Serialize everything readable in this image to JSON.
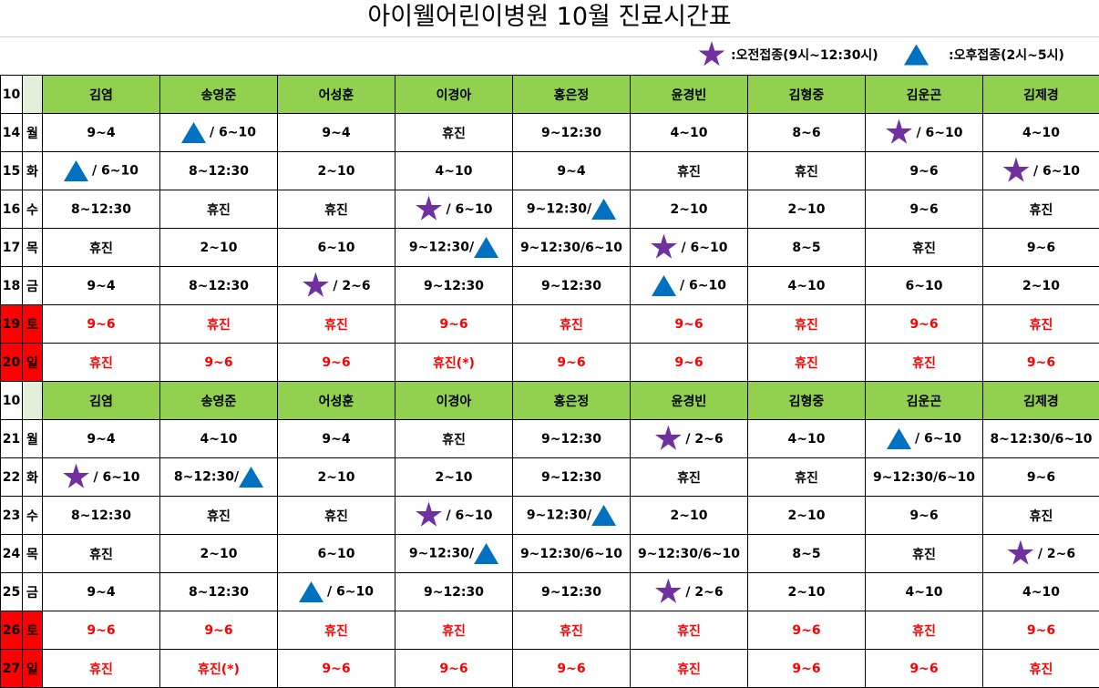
{
  "title": "아이웰어린이병원 10월 진료시간표",
  "legend": {
    "am_label": ":오전접종(9시~12:30시)",
    "pm_label": ":오후접종(2시~5시)",
    "am_icon": "star-icon",
    "pm_icon": "triangle-icon",
    "am_color": "#7030a0",
    "pm_color": "#0070c0"
  },
  "colors": {
    "header_green": "#92d050",
    "weekend_red": "#ff0000"
  },
  "month_label": "10",
  "doctors": [
    "김염",
    "송영준",
    "어성훈",
    "이경아",
    "홍은정",
    "윤경빈",
    "김형중",
    "김운곤",
    "김제경"
  ],
  "weeks": [
    {
      "rows": [
        {
          "date": "14",
          "day": "월",
          "weekend": false,
          "cells": [
            {
              "text": "9~4"
            },
            {
              "icon": "tri",
              "text": "/ 6~10"
            },
            {
              "text": "9~4"
            },
            {
              "text": "휴진"
            },
            {
              "text": "9~12:30"
            },
            {
              "text": "4~10"
            },
            {
              "text": "8~6"
            },
            {
              "icon": "star",
              "text": "/ 6~10"
            },
            {
              "text": "4~10"
            }
          ]
        },
        {
          "date": "15",
          "day": "화",
          "weekend": false,
          "cells": [
            {
              "icon": "tri",
              "text": "/ 6~10"
            },
            {
              "text": "8~12:30"
            },
            {
              "text": "2~10"
            },
            {
              "text": "4~10"
            },
            {
              "text": "9~4"
            },
            {
              "text": "휴진"
            },
            {
              "text": "휴진"
            },
            {
              "text": "9~6"
            },
            {
              "icon": "star",
              "text": "/ 6~10"
            }
          ]
        },
        {
          "date": "16",
          "day": "수",
          "weekend": false,
          "cells": [
            {
              "text": "8~12:30"
            },
            {
              "text": "휴진"
            },
            {
              "text": "휴진"
            },
            {
              "icon": "star",
              "text": "/ 6~10"
            },
            {
              "text": "9~12:30/",
              "icon_after": "tri"
            },
            {
              "text": "2~10"
            },
            {
              "text": "2~10"
            },
            {
              "text": "9~6"
            },
            {
              "text": "휴진"
            }
          ]
        },
        {
          "date": "17",
          "day": "목",
          "weekend": false,
          "cells": [
            {
              "text": "휴진"
            },
            {
              "text": "2~10"
            },
            {
              "text": "6~10"
            },
            {
              "text": "9~12:30/",
              "icon_after": "tri"
            },
            {
              "text": "9~12:30/6~10"
            },
            {
              "icon": "star",
              "text": "/ 6~10"
            },
            {
              "text": "8~5"
            },
            {
              "text": "휴진"
            },
            {
              "text": "9~6"
            }
          ]
        },
        {
          "date": "18",
          "day": "금",
          "weekend": false,
          "cells": [
            {
              "text": "9~4"
            },
            {
              "text": "8~12:30"
            },
            {
              "icon": "star",
              "text": "/ 2~6"
            },
            {
              "text": "9~12:30"
            },
            {
              "text": "9~12:30"
            },
            {
              "icon": "tri",
              "text": "/ 6~10"
            },
            {
              "text": "4~10"
            },
            {
              "text": "6~10"
            },
            {
              "text": "2~10"
            }
          ]
        },
        {
          "date": "19",
          "day": "토",
          "weekend": true,
          "cells": [
            {
              "text": "9~6"
            },
            {
              "text": "휴진"
            },
            {
              "text": "휴진"
            },
            {
              "text": "9~6"
            },
            {
              "text": "휴진"
            },
            {
              "text": "9~6"
            },
            {
              "text": "휴진"
            },
            {
              "text": "9~6"
            },
            {
              "text": "휴진"
            }
          ]
        },
        {
          "date": "20",
          "day": "일",
          "weekend": true,
          "cells": [
            {
              "text": "휴진"
            },
            {
              "text": "9~6"
            },
            {
              "text": "9~6"
            },
            {
              "text": "휴진(*)"
            },
            {
              "text": "9~6"
            },
            {
              "text": "9~6"
            },
            {
              "text": "휴진"
            },
            {
              "text": "휴진"
            },
            {
              "text": "9~6"
            }
          ]
        }
      ]
    },
    {
      "rows": [
        {
          "date": "21",
          "day": "월",
          "weekend": false,
          "cells": [
            {
              "text": "9~4"
            },
            {
              "text": "4~10"
            },
            {
              "text": "9~4"
            },
            {
              "text": "휴진"
            },
            {
              "text": "9~12:30"
            },
            {
              "icon": "star",
              "text": "/ 2~6"
            },
            {
              "text": "4~10"
            },
            {
              "icon": "tri",
              "text": "/ 6~10"
            },
            {
              "text": "8~12:30/6~10"
            }
          ]
        },
        {
          "date": "22",
          "day": "화",
          "weekend": false,
          "cells": [
            {
              "icon": "star",
              "text": "/ 6~10"
            },
            {
              "text": "8~12:30/",
              "icon_after": "tri"
            },
            {
              "text": "2~10"
            },
            {
              "text": "2~10"
            },
            {
              "text": "9~12:30"
            },
            {
              "text": "휴진"
            },
            {
              "text": "휴진"
            },
            {
              "text": "9~12:30/6~10"
            },
            {
              "text": "9~6"
            }
          ]
        },
        {
          "date": "23",
          "day": "수",
          "weekend": false,
          "cells": [
            {
              "text": "8~12:30"
            },
            {
              "text": "휴진"
            },
            {
              "text": "휴진"
            },
            {
              "icon": "star",
              "text": "/ 6~10"
            },
            {
              "text": "9~12:30/",
              "icon_after": "tri"
            },
            {
              "text": "2~10"
            },
            {
              "text": "2~10"
            },
            {
              "text": "9~6"
            },
            {
              "text": "휴진"
            }
          ]
        },
        {
          "date": "24",
          "day": "목",
          "weekend": false,
          "cells": [
            {
              "text": "휴진"
            },
            {
              "text": "2~10"
            },
            {
              "text": "6~10"
            },
            {
              "text": "9~12:30/",
              "icon_after": "tri"
            },
            {
              "text": "9~12:30/6~10"
            },
            {
              "text": "9~12:30/6~10"
            },
            {
              "text": "8~5"
            },
            {
              "text": "휴진"
            },
            {
              "icon": "star",
              "text": "/ 2~6"
            }
          ]
        },
        {
          "date": "25",
          "day": "금",
          "weekend": false,
          "cells": [
            {
              "text": "9~4"
            },
            {
              "text": "8~12:30"
            },
            {
              "icon": "tri",
              "text": "/ 6~10"
            },
            {
              "text": "9~12:30"
            },
            {
              "text": "9~12:30"
            },
            {
              "icon": "star",
              "text": "/ 2~6"
            },
            {
              "text": "2~10"
            },
            {
              "text": "4~10"
            },
            {
              "text": "4~10"
            }
          ]
        },
        {
          "date": "26",
          "day": "토",
          "weekend": true,
          "cells": [
            {
              "text": "9~6"
            },
            {
              "text": "9~6"
            },
            {
              "text": "휴진"
            },
            {
              "text": "휴진"
            },
            {
              "text": "휴진"
            },
            {
              "text": "휴진"
            },
            {
              "text": "9~6"
            },
            {
              "text": "휴진"
            },
            {
              "text": "9~6"
            }
          ]
        },
        {
          "date": "27",
          "day": "일",
          "weekend": true,
          "cells": [
            {
              "text": "휴진"
            },
            {
              "text": "휴진(*)"
            },
            {
              "text": "9~6"
            },
            {
              "text": "9~6"
            },
            {
              "text": "9~6"
            },
            {
              "text": "휴진"
            },
            {
              "text": "9~6"
            },
            {
              "text": "9~6"
            },
            {
              "text": "휴진"
            }
          ]
        }
      ]
    }
  ]
}
